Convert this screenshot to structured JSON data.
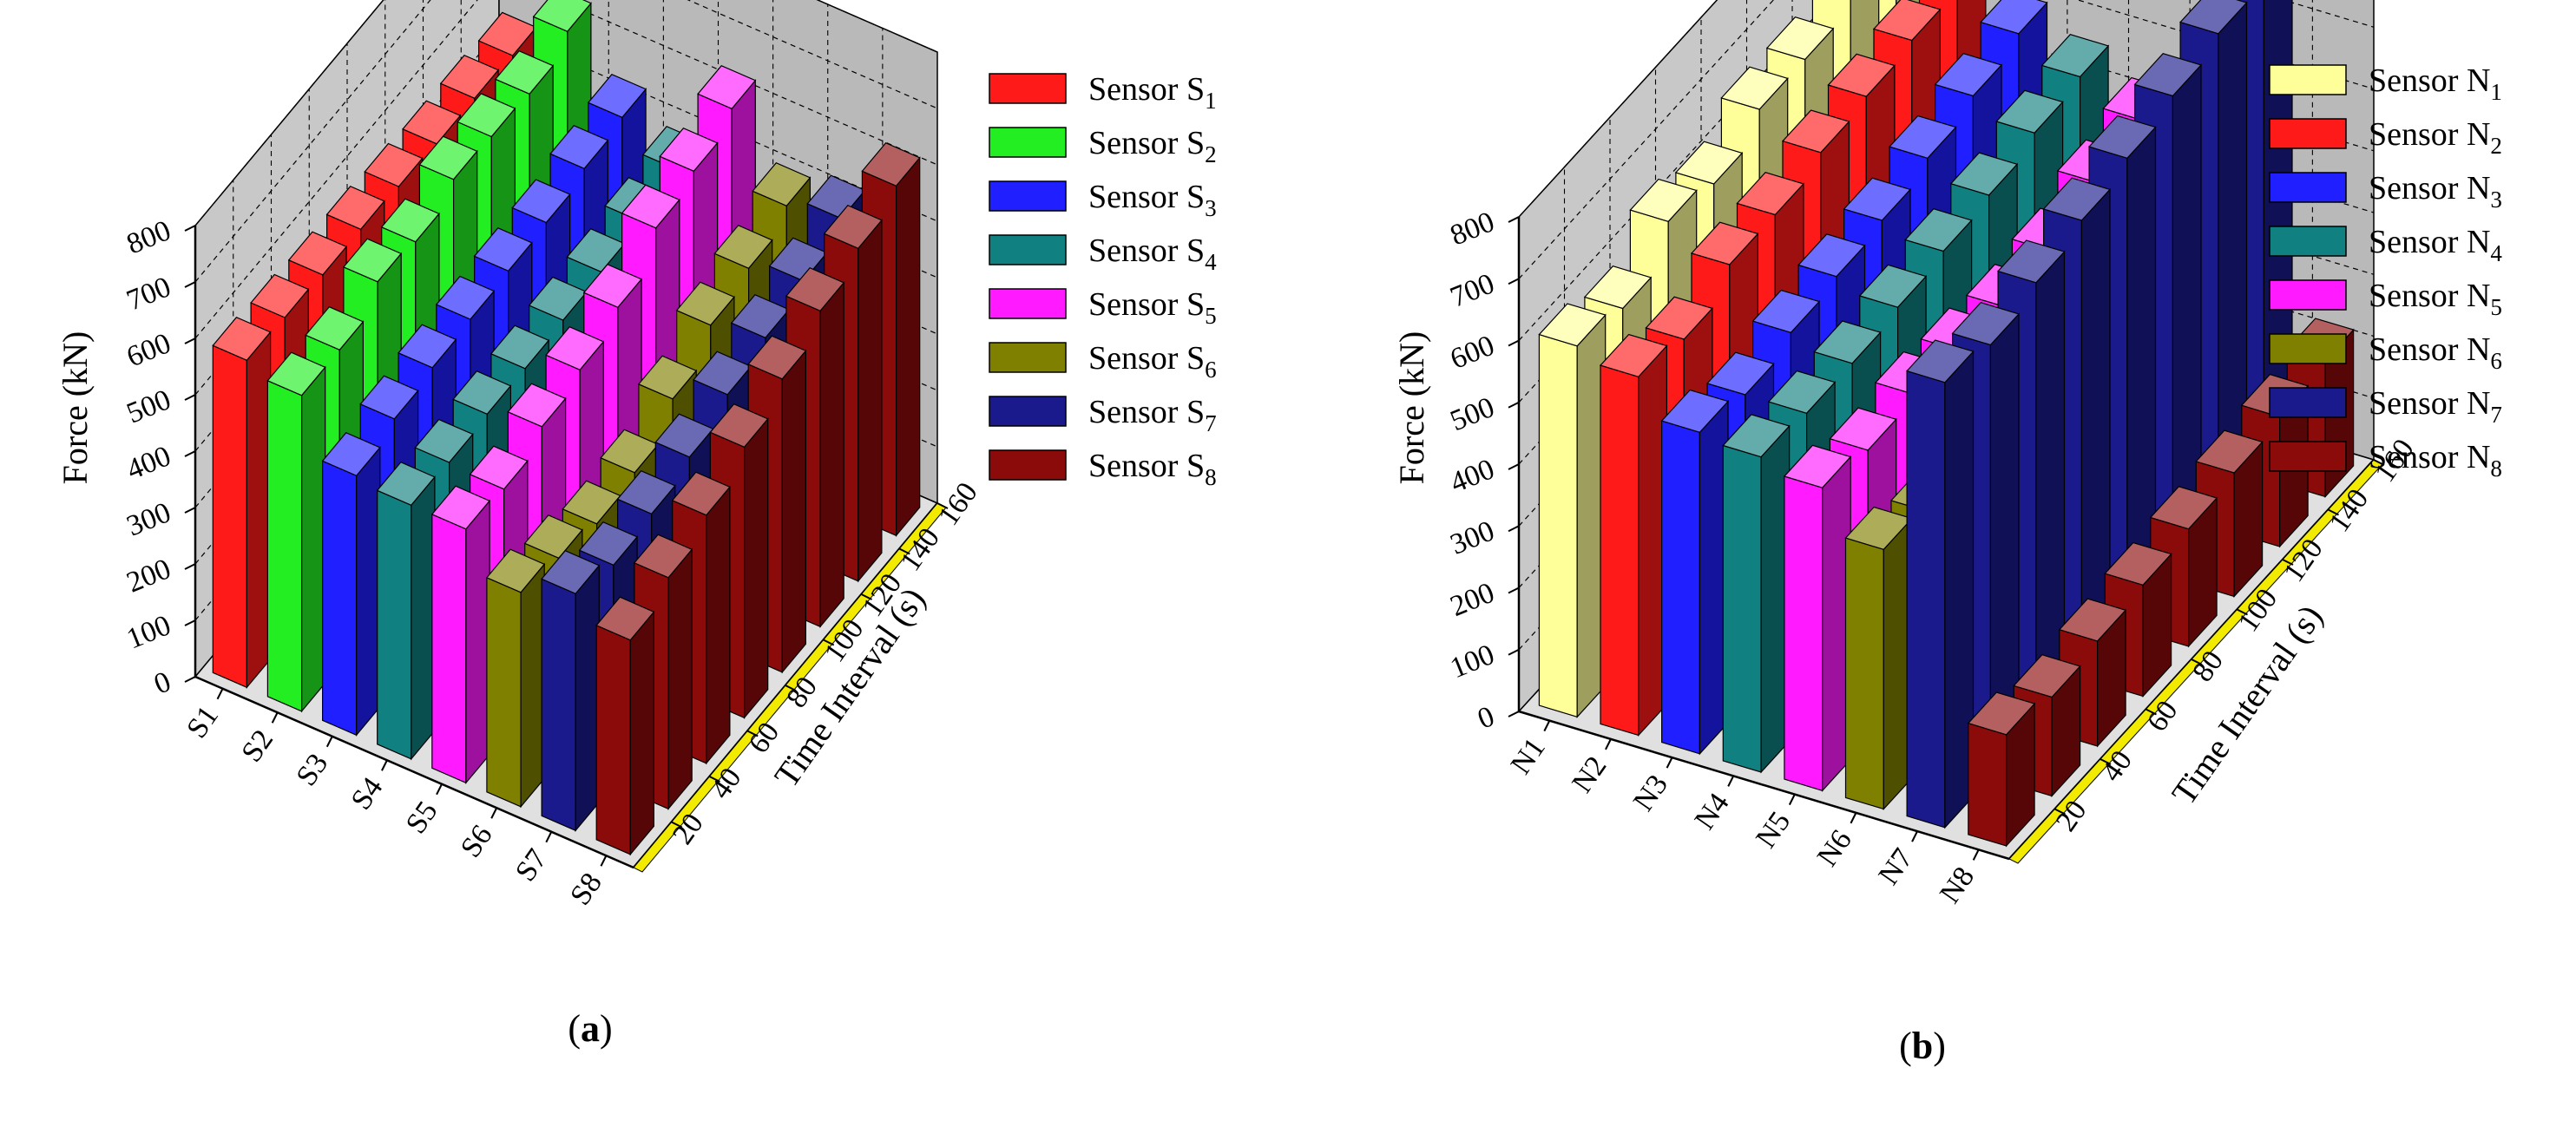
{
  "chart_data": [
    {
      "type": "bar3d",
      "panel_label": "a",
      "zlabel": "Force (kN)",
      "ylabel": "Time Interval (s)",
      "zlim": [
        0,
        800
      ],
      "z_ticks": [
        0,
        100,
        200,
        300,
        400,
        500,
        600,
        700,
        800
      ],
      "y_ticks": [
        20,
        40,
        60,
        80,
        100,
        120,
        140,
        160
      ],
      "categories": [
        "S1",
        "S2",
        "S3",
        "S4",
        "S5",
        "S6",
        "S7",
        "S8"
      ],
      "time_points": [
        10,
        30,
        50,
        70,
        90,
        110,
        130,
        150
      ],
      "series": [
        {
          "name": "Sensor S",
          "sub": "1",
          "color": "#ff1a1a",
          "values": [
            580,
            575,
            570,
            570,
            565,
            560,
            560,
            555
          ]
        },
        {
          "name": "Sensor S",
          "sub": "2",
          "color": "#22ee22",
          "values": [
            560,
            560,
            600,
            590,
            620,
            615,
            610,
            640
          ]
        },
        {
          "name": "Sensor S",
          "sub": "3",
          "color": "#1f1fff",
          "values": [
            460,
            480,
            490,
            495,
            500,
            505,
            520,
            530
          ]
        },
        {
          "name": "Sensor S",
          "sub": "4",
          "color": "#108080",
          "values": [
            450,
            445,
            450,
            450,
            455,
            460,
            470,
            480
          ]
        },
        {
          "name": "Sensor S",
          "sub": "5",
          "color": "#ff1aff",
          "values": [
            450,
            440,
            470,
            490,
            520,
            580,
            600,
            630
          ]
        },
        {
          "name": "Sensor S",
          "sub": "6",
          "color": "#808000",
          "values": [
            380,
            360,
            340,
            350,
            400,
            450,
            470,
            500
          ]
        },
        {
          "name": "Sensor S",
          "sub": "7",
          "color": "#1a1a8c",
          "values": [
            420,
            390,
            400,
            420,
            450,
            470,
            490,
            520
          ]
        },
        {
          "name": "Sensor S",
          "sub": "8",
          "color": "#8b0a0a",
          "values": [
            380,
            410,
            440,
            480,
            520,
            560,
            590,
            620
          ]
        }
      ]
    },
    {
      "type": "bar3d",
      "panel_label": "b",
      "zlabel": "Force (kN)",
      "ylabel": "Time Interval (s)",
      "zlim": [
        0,
        800
      ],
      "z_ticks": [
        0,
        100,
        200,
        300,
        400,
        500,
        600,
        700,
        800
      ],
      "y_ticks": [
        20,
        40,
        60,
        80,
        100,
        120,
        140,
        160
      ],
      "categories": [
        "N1",
        "N2",
        "N3",
        "N4",
        "N5",
        "N6",
        "N7",
        "N8"
      ],
      "time_points": [
        10,
        30,
        50,
        70,
        90,
        110,
        130,
        150
      ],
      "series": [
        {
          "name": "Sensor N",
          "sub": "1",
          "color": "#ffff99",
          "values": [
            600,
            580,
            640,
            620,
            660,
            660,
            690,
            690
          ]
        },
        {
          "name": "Sensor N",
          "sub": "2",
          "color": "#ff1a1a",
          "values": [
            580,
            560,
            600,
            600,
            620,
            630,
            640,
            660
          ]
        },
        {
          "name": "Sensor N",
          "sub": "3",
          "color": "#1f1fff",
          "values": [
            520,
            500,
            520,
            530,
            540,
            560,
            580,
            600
          ]
        },
        {
          "name": "Sensor N",
          "sub": "4",
          "color": "#108080",
          "values": [
            510,
            500,
            500,
            510,
            520,
            530,
            550,
            560
          ]
        },
        {
          "name": "Sensor N",
          "sub": "5",
          "color": "#ff1aff",
          "values": [
            490,
            470,
            480,
            470,
            460,
            470,
            500,
            520
          ]
        },
        {
          "name": "Sensor N",
          "sub": "6",
          "color": "#808000",
          "values": [
            420,
            400,
            380,
            360,
            380,
            400,
            420,
            440
          ]
        },
        {
          "name": "Sensor N",
          "sub": "7",
          "color": "#1a1a8c",
          "values": [
            720,
            700,
            720,
            740,
            760,
            780,
            800,
            820
          ]
        },
        {
          "name": "Sensor N",
          "sub": "8",
          "color": "#8b0a0a",
          "values": [
            180,
            160,
            170,
            180,
            190,
            200,
            210,
            220
          ]
        }
      ]
    }
  ]
}
